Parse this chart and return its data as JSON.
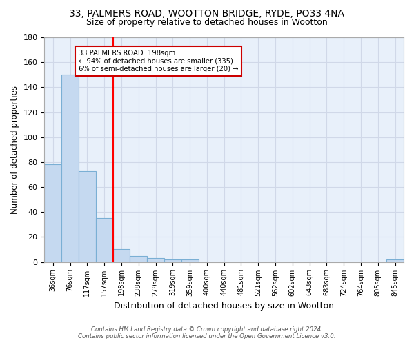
{
  "title_line1": "33, PALMERS ROAD, WOOTTON BRIDGE, RYDE, PO33 4NA",
  "title_line2": "Size of property relative to detached houses in Wootton",
  "xlabel": "Distribution of detached houses by size in Wootton",
  "ylabel": "Number of detached properties",
  "bar_labels": [
    "36sqm",
    "76sqm",
    "117sqm",
    "157sqm",
    "198sqm",
    "238sqm",
    "279sqm",
    "319sqm",
    "359sqm",
    "400sqm",
    "440sqm",
    "481sqm",
    "521sqm",
    "562sqm",
    "602sqm",
    "643sqm",
    "683sqm",
    "724sqm",
    "764sqm",
    "805sqm",
    "845sqm"
  ],
  "bar_values": [
    78,
    150,
    73,
    35,
    10,
    5,
    3,
    2,
    2,
    0,
    0,
    0,
    0,
    0,
    0,
    0,
    0,
    0,
    0,
    0,
    2
  ],
  "bar_color": "#c5d9f0",
  "bar_edgecolor": "#7aafd4",
  "background_color": "#e8f0fa",
  "grid_color": "#d0d8e8",
  "red_line_index": 4,
  "annotation_text": "33 PALMERS ROAD: 198sqm\n← 94% of detached houses are smaller (335)\n6% of semi-detached houses are larger (20) →",
  "annotation_box_edgecolor": "#cc0000",
  "ylim": [
    0,
    180
  ],
  "yticks": [
    0,
    20,
    40,
    60,
    80,
    100,
    120,
    140,
    160,
    180
  ],
  "footer_line1": "Contains HM Land Registry data © Crown copyright and database right 2024.",
  "footer_line2": "Contains public sector information licensed under the Open Government Licence v3.0."
}
